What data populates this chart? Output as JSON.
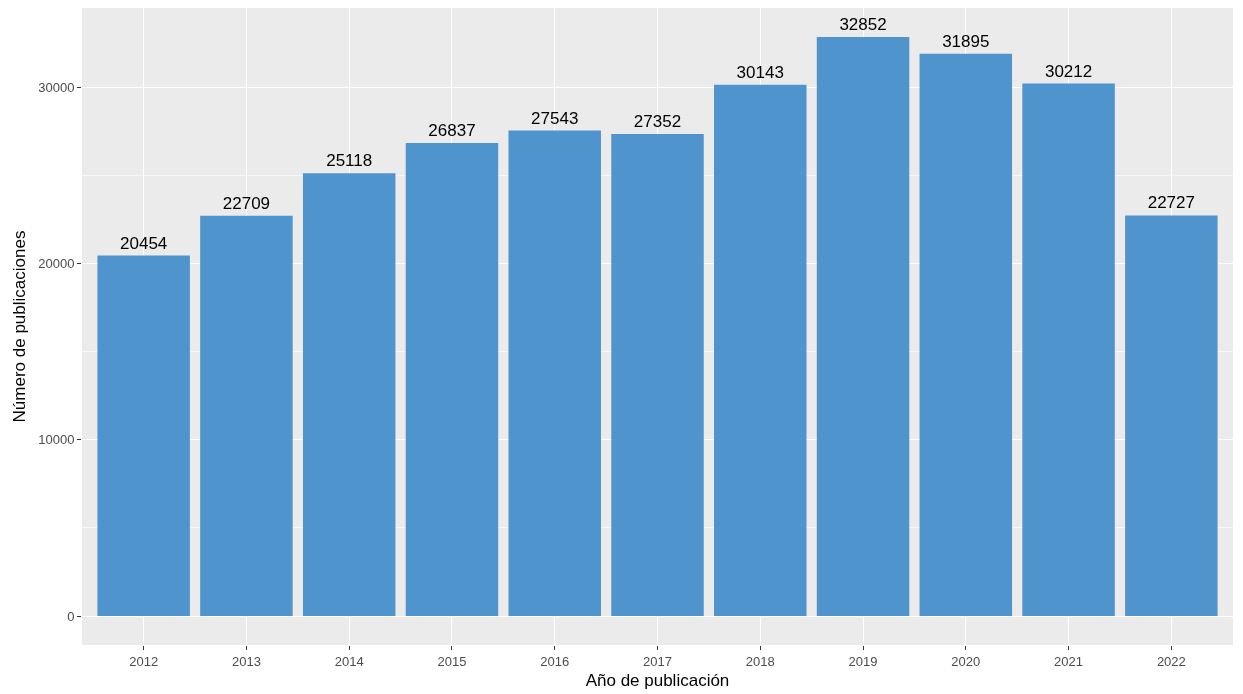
{
  "chart_data": {
    "type": "bar",
    "xlabel": "Año de publicación",
    "ylabel": "Número de publicaciones",
    "categories": [
      "2012",
      "2013",
      "2014",
      "2015",
      "2016",
      "2017",
      "2018",
      "2019",
      "2020",
      "2021",
      "2022"
    ],
    "values": [
      20454,
      22709,
      25118,
      26837,
      27543,
      27352,
      30143,
      32852,
      31895,
      30212,
      22727
    ],
    "color": "#4f94cd",
    "ylim": [
      -1643,
      34495
    ],
    "yticks": [
      0,
      10000,
      20000,
      30000
    ],
    "grid": true,
    "data_labels": true,
    "legend": false
  }
}
